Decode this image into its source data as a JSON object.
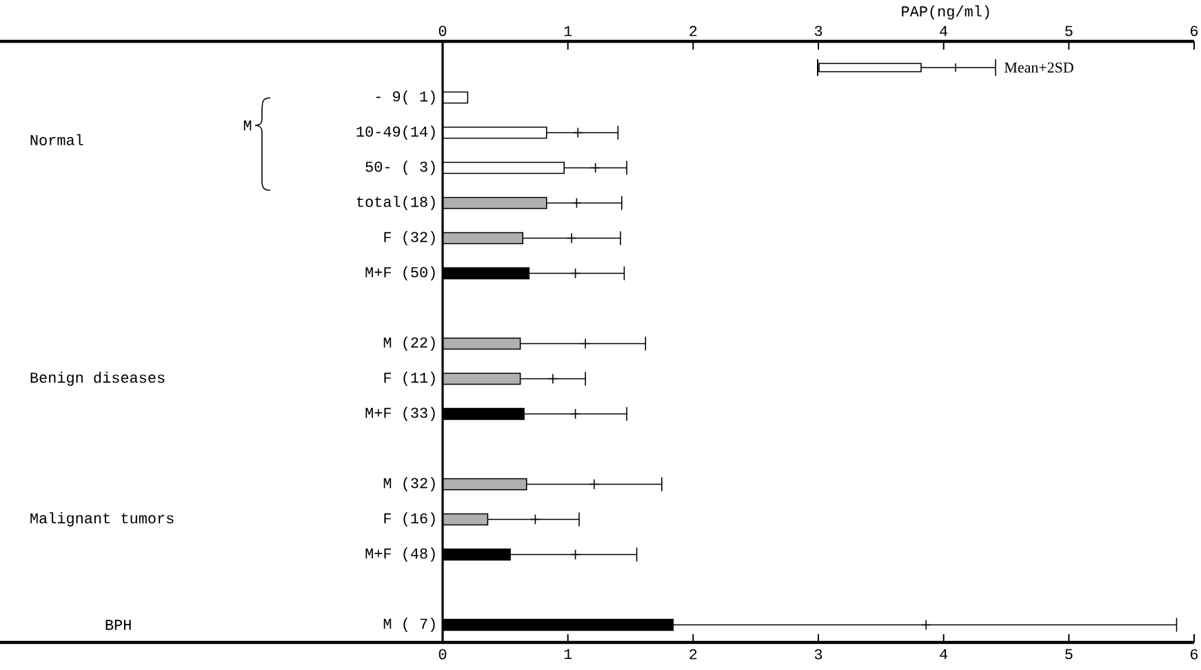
{
  "chart_data": {
    "type": "bar",
    "orientation": "horizontal",
    "categories": [
      "- 9( 1)",
      "10-49(14)",
      "50- ( 3)",
      "total(18)",
      "F (32)",
      "M+F (50)",
      null,
      "M (22)",
      "F (11)",
      "M+F (33)",
      null,
      "M (32)",
      "F (16)",
      "M+F (48)",
      null,
      "M ( 7)"
    ],
    "series": [
      {
        "values": [
          0.2,
          0.83,
          0.97,
          0.83,
          0.64,
          0.69,
          null,
          0.62,
          0.62,
          0.65,
          null,
          0.67,
          0.36,
          0.54,
          null,
          1.84
        ],
        "colors": [
          "#ffffff",
          "#ffffff",
          "#ffffff",
          "#b0b0b0",
          "#b0b0b0",
          "#000000",
          null,
          "#b0b0b0",
          "#b0b0b0",
          "#000000",
          null,
          "#b0b0b0",
          "#b0b0b0",
          "#000000",
          null,
          "#000000"
        ],
        "errors": [
          null,
          [
            0.83,
            1.4
          ],
          [
            0.97,
            1.47
          ],
          [
            0.83,
            1.43
          ],
          [
            0.64,
            1.42
          ],
          [
            0.69,
            1.45
          ],
          null,
          [
            0.62,
            1.62
          ],
          [
            0.62,
            1.14
          ],
          [
            0.65,
            1.47
          ],
          null,
          [
            0.67,
            1.75
          ],
          [
            0.36,
            1.09
          ],
          [
            0.54,
            1.55
          ],
          null,
          [
            1.84,
            5.86
          ]
        ]
      },
      {
        "type": "scatter",
        "color": "#000000",
        "values": [
          null,
          1.08,
          1.22,
          1.07,
          1.03,
          1.06,
          null,
          1.14,
          0.88,
          1.06,
          null,
          1.21,
          0.74,
          1.06,
          null,
          3.86
        ]
      }
    ],
    "xlim": [
      0,
      6
    ],
    "xticks": [
      0,
      1,
      2,
      3,
      4,
      5,
      6
    ],
    "x2lim": [
      0,
      6
    ],
    "x2ticks": [
      0,
      1,
      2,
      3,
      4,
      5,
      6
    ],
    "x2label": "PAP(ng/ml)",
    "annotations": [
      "Normal",
      "M",
      "Benign diseases",
      "Malignant tumors",
      "BPH",
      "Mean+2SD"
    ]
  }
}
